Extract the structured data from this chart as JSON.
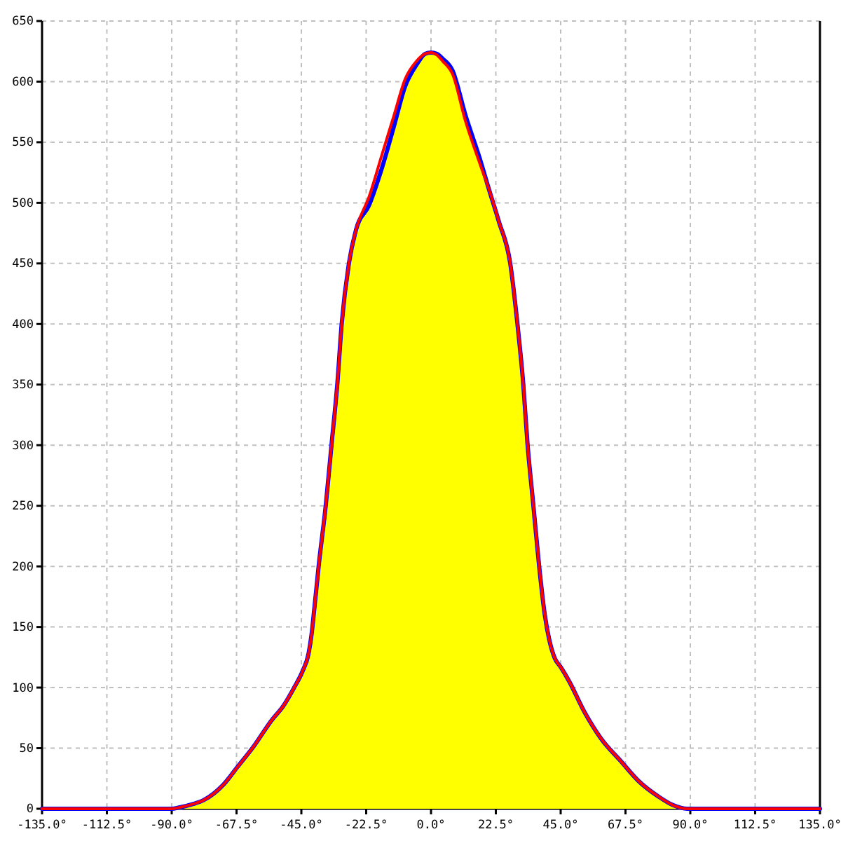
{
  "chart_data": {
    "type": "area",
    "x": [
      -135,
      -90,
      -87.5,
      -82.5,
      -79,
      -72,
      -67,
      -62,
      -55,
      -51.5,
      -47.5,
      -44.5,
      -42.5,
      -41.5,
      -40.5,
      -39,
      -36.5,
      -34.5,
      -32.5,
      -31,
      -28.5,
      -26,
      -21.5,
      -17,
      -13,
      -9,
      -5,
      -2,
      0,
      2,
      4,
      7.5,
      12,
      17,
      20,
      23.5,
      27.5,
      30,
      32,
      33.5,
      35.5,
      37.5,
      39.5,
      41,
      43,
      45,
      48,
      53,
      59,
      66,
      72,
      79,
      84,
      89,
      135
    ],
    "series": [
      {
        "color": "#ffff00",
        "x": [
          -90,
          -87.5,
          -82.5,
          -79,
          -72,
          -67,
          -62,
          -55,
          -51.5,
          -47.5,
          -44.5,
          -42.5,
          -41.5,
          -40.5,
          -39,
          -36.5,
          -34.5,
          -32.5,
          -31,
          -28.5,
          -26,
          -21.5,
          -17,
          -13,
          -9,
          -5,
          -2,
          0,
          2,
          4,
          7.5,
          12,
          17,
          20,
          23.5,
          27.5,
          30,
          32,
          33.5,
          35.5,
          37.5,
          39.5,
          41,
          43,
          45,
          48,
          53,
          59,
          66,
          72,
          79,
          84,
          89
        ],
        "values": [
          0,
          1,
          4,
          7,
          20,
          35,
          50,
          74,
          84,
          100,
          114,
          128,
          143,
          165,
          200,
          251,
          301,
          351,
          400,
          450,
          478,
          498,
          529,
          562,
          596,
          614,
          623,
          624,
          622,
          617,
          606,
          567,
          532,
          512,
          485,
          450,
          400,
          351,
          301,
          251,
          201,
          160,
          140,
          124,
          117,
          105,
          81,
          58,
          39,
          23,
          10,
          3,
          0
        ]
      },
      {
        "type": "line",
        "color": "#0000ff",
        "values": [
          0,
          0,
          1,
          4,
          7,
          20,
          35,
          50,
          74,
          84,
          100,
          114,
          128,
          143,
          165,
          200,
          251,
          301,
          351,
          400,
          450,
          478,
          498,
          529,
          562,
          596,
          614,
          623,
          624,
          623,
          619,
          609,
          572,
          536,
          512,
          485,
          450,
          400,
          351,
          301,
          251,
          201,
          160,
          140,
          124,
          117,
          105,
          81,
          58,
          39,
          23,
          10,
          3,
          0,
          0
        ]
      },
      {
        "type": "line",
        "color": "#ff0000",
        "values": [
          0,
          0,
          1,
          4,
          7,
          20,
          35,
          50,
          74,
          84,
          100,
          114,
          128,
          143,
          165,
          200,
          251,
          301,
          351,
          400,
          450,
          478,
          505,
          540,
          571,
          602,
          617,
          623,
          624,
          622,
          617,
          606,
          567,
          532,
          512,
          485,
          450,
          400,
          351,
          301,
          251,
          201,
          160,
          140,
          124,
          117,
          105,
          81,
          58,
          39,
          23,
          10,
          3,
          0,
          0
        ]
      }
    ],
    "xlim": [
      -135,
      135
    ],
    "xticks": [
      {
        "value": -135,
        "label": "-135.0°"
      },
      {
        "value": -112.5,
        "label": "-112.5°"
      },
      {
        "value": -90,
        "label": "-90.0°"
      },
      {
        "value": -67.5,
        "label": "-67.5°"
      },
      {
        "value": -45,
        "label": "-45.0°"
      },
      {
        "value": -22.5,
        "label": "-22.5°"
      },
      {
        "value": 0,
        "label": "0.0°"
      },
      {
        "value": 22.5,
        "label": "22.5°"
      },
      {
        "value": 45,
        "label": "45.0°"
      },
      {
        "value": 67.5,
        "label": "67.5°"
      },
      {
        "value": 90,
        "label": "90.0°"
      },
      {
        "value": 112.5,
        "label": "112.5°"
      },
      {
        "value": 135,
        "label": "135.0°"
      }
    ],
    "ylim": [
      0,
      650
    ],
    "yticks": [
      0,
      50,
      100,
      150,
      200,
      250,
      300,
      350,
      400,
      450,
      500,
      550,
      600,
      650
    ],
    "grid": true
  }
}
